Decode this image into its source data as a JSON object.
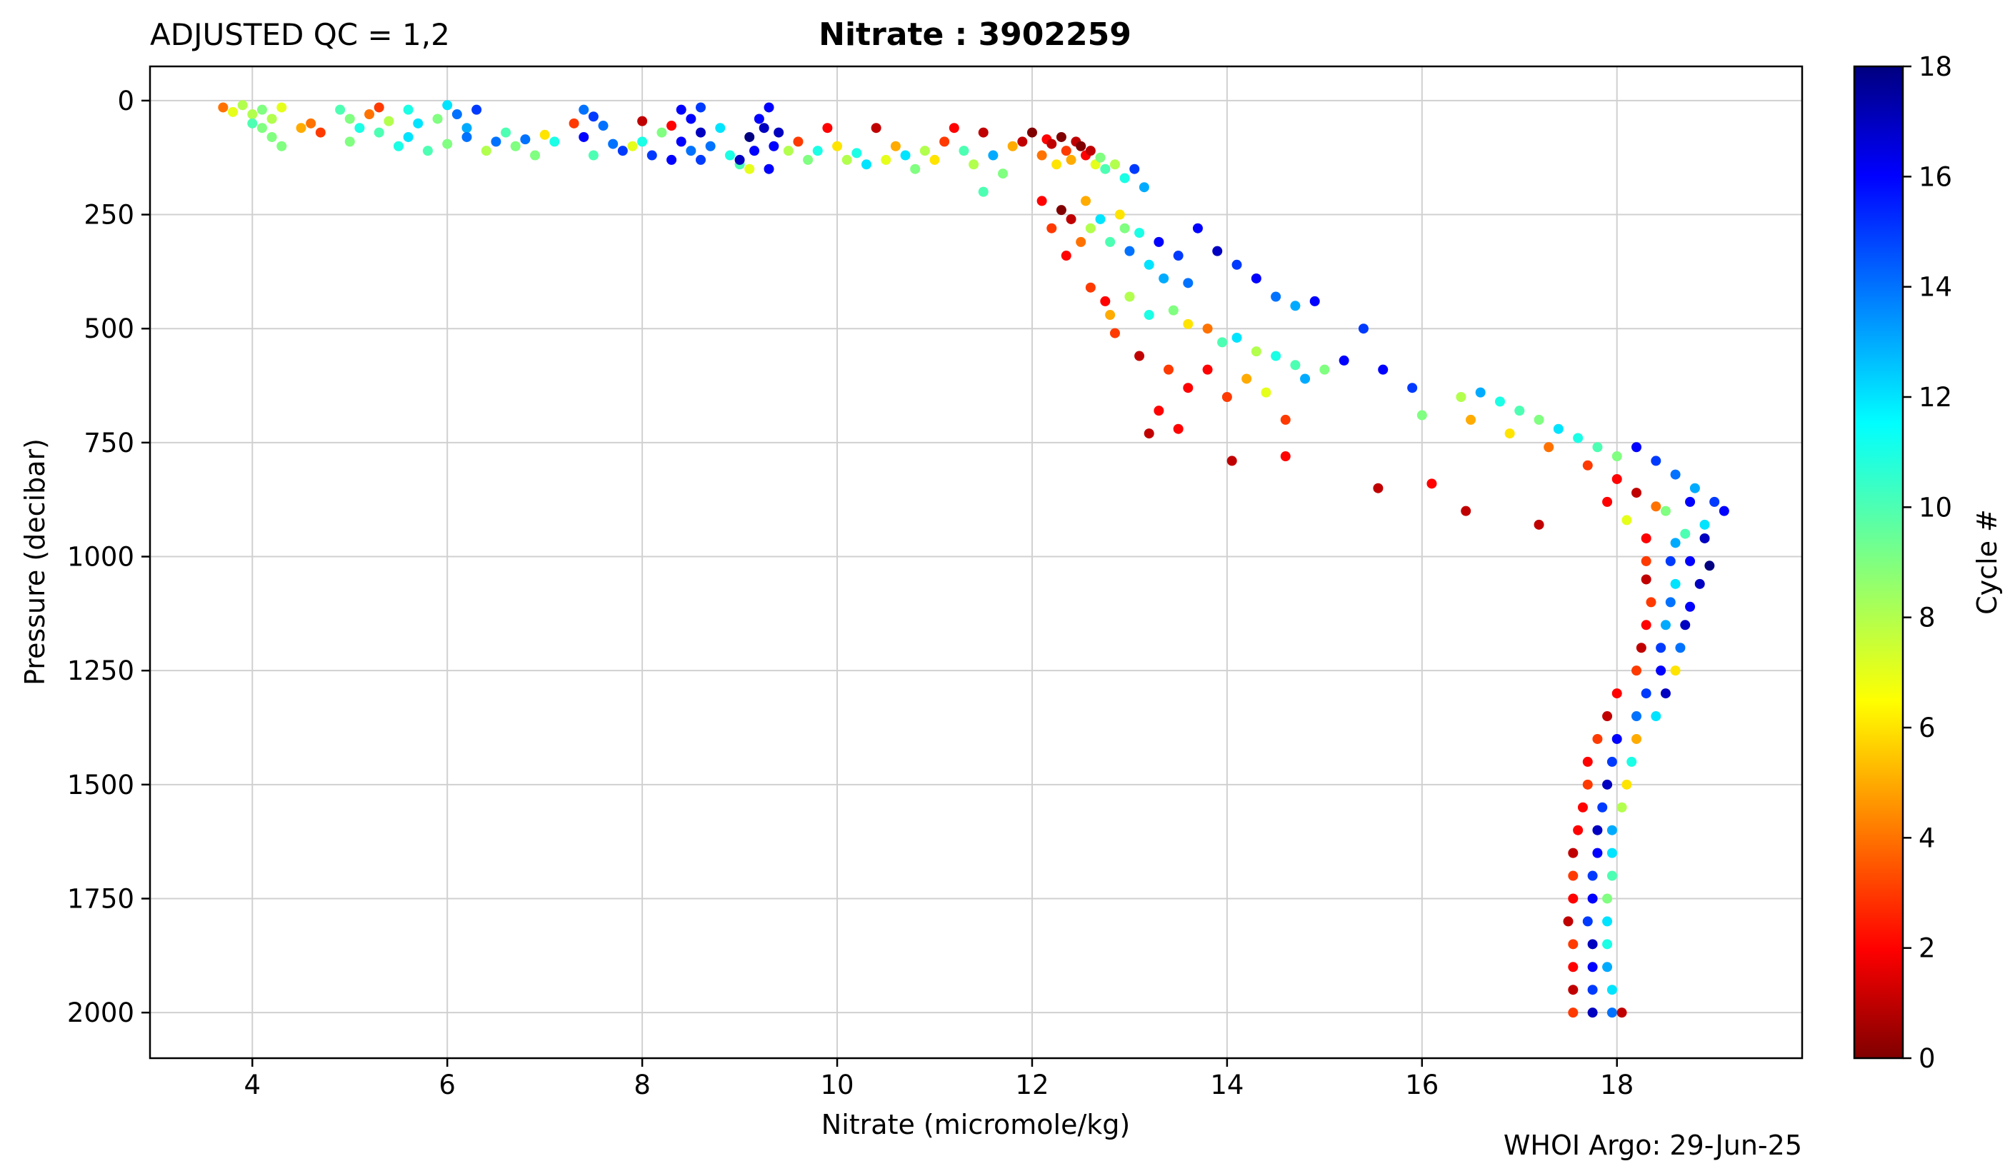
{
  "header": {
    "left_title": "ADJUSTED QC = 1,2",
    "center_title": "Nitrate : 3902259",
    "footer_credit": "WHOI Argo: 29-Jun-25"
  },
  "chart_data": {
    "type": "scatter",
    "xlabel": "Nitrate  (micromole/kg)",
    "ylabel": "Pressure  (decibar)",
    "colorbar_label": "Cycle #",
    "xlim": [
      2.95,
      19.9
    ],
    "ylim": [
      2100,
      -75
    ],
    "y_inverted": true,
    "grid": true,
    "x_ticks": [
      4,
      6,
      8,
      10,
      12,
      14,
      16,
      18
    ],
    "y_ticks": [
      0,
      250,
      500,
      750,
      1000,
      1250,
      1500,
      1750,
      2000
    ],
    "colorbar": {
      "min": 0,
      "max": 18,
      "ticks": [
        0,
        2,
        4,
        6,
        8,
        10,
        12,
        14,
        16,
        18
      ],
      "colormap": "jet"
    },
    "points": [
      [
        3.7,
        15,
        4
      ],
      [
        3.8,
        25,
        7
      ],
      [
        3.9,
        10,
        8
      ],
      [
        4.0,
        30,
        8
      ],
      [
        4.1,
        20,
        9
      ],
      [
        4.2,
        40,
        8
      ],
      [
        4.3,
        15,
        7
      ],
      [
        4.1,
        60,
        9
      ],
      [
        4.0,
        50,
        10
      ],
      [
        4.2,
        80,
        9
      ],
      [
        4.3,
        100,
        9
      ],
      [
        4.5,
        60,
        5
      ],
      [
        4.7,
        70,
        3
      ],
      [
        4.6,
        50,
        4
      ],
      [
        4.9,
        20,
        10
      ],
      [
        5.0,
        40,
        9
      ],
      [
        5.1,
        60,
        11
      ],
      [
        5.0,
        90,
        9
      ],
      [
        5.2,
        30,
        4
      ],
      [
        5.3,
        15,
        3
      ],
      [
        5.4,
        45,
        8
      ],
      [
        5.3,
        70,
        10
      ],
      [
        5.6,
        20,
        11
      ],
      [
        5.7,
        50,
        12
      ],
      [
        5.5,
        100,
        11
      ],
      [
        5.8,
        110,
        10
      ],
      [
        5.9,
        40,
        9
      ],
      [
        5.6,
        80,
        12
      ],
      [
        6.0,
        10,
        12
      ],
      [
        6.1,
        30,
        14
      ],
      [
        6.2,
        60,
        13
      ],
      [
        6.3,
        20,
        15
      ],
      [
        6.2,
        80,
        14
      ],
      [
        6.0,
        95,
        9
      ],
      [
        6.5,
        90,
        14
      ],
      [
        6.6,
        70,
        10
      ],
      [
        6.4,
        110,
        8
      ],
      [
        6.7,
        100,
        9
      ],
      [
        6.8,
        85,
        14
      ],
      [
        6.9,
        120,
        9
      ],
      [
        7.0,
        75,
        6
      ],
      [
        7.1,
        90,
        11
      ],
      [
        7.3,
        50,
        3
      ],
      [
        7.4,
        20,
        14
      ],
      [
        7.5,
        35,
        15
      ],
      [
        7.6,
        55,
        14
      ],
      [
        7.4,
        80,
        16
      ],
      [
        7.7,
        95,
        14
      ],
      [
        7.8,
        110,
        15
      ],
      [
        7.5,
        120,
        10
      ],
      [
        7.9,
        100,
        7
      ],
      [
        8.0,
        90,
        11
      ],
      [
        8.1,
        120,
        15
      ],
      [
        8.2,
        70,
        9
      ],
      [
        8.3,
        55,
        2
      ],
      [
        8.0,
        45,
        1
      ],
      [
        8.4,
        20,
        16
      ],
      [
        8.5,
        40,
        16
      ],
      [
        8.6,
        15,
        15
      ],
      [
        8.4,
        90,
        16
      ],
      [
        8.6,
        70,
        17
      ],
      [
        8.5,
        110,
        14
      ],
      [
        8.3,
        130,
        16
      ],
      [
        8.6,
        130,
        15
      ],
      [
        8.7,
        100,
        14
      ],
      [
        8.8,
        60,
        12
      ],
      [
        8.9,
        120,
        11
      ],
      [
        9.0,
        140,
        10
      ],
      [
        9.1,
        80,
        18
      ],
      [
        9.2,
        40,
        16
      ],
      [
        9.3,
        15,
        16
      ],
      [
        9.25,
        60,
        17
      ],
      [
        9.15,
        110,
        16
      ],
      [
        9.35,
        100,
        16
      ],
      [
        9.0,
        130,
        17
      ],
      [
        9.4,
        70,
        17
      ],
      [
        9.3,
        150,
        16
      ],
      [
        9.1,
        150,
        7
      ],
      [
        9.5,
        110,
        8
      ],
      [
        9.6,
        90,
        3
      ],
      [
        9.7,
        130,
        9
      ],
      [
        9.8,
        110,
        11
      ],
      [
        9.9,
        60,
        2
      ],
      [
        10.0,
        100,
        6
      ],
      [
        10.1,
        130,
        8
      ],
      [
        10.2,
        115,
        11
      ],
      [
        10.3,
        140,
        12
      ],
      [
        10.4,
        60,
        1
      ],
      [
        10.5,
        130,
        7
      ],
      [
        10.6,
        100,
        5
      ],
      [
        10.7,
        120,
        12
      ],
      [
        10.8,
        150,
        9
      ],
      [
        10.9,
        110,
        8
      ],
      [
        11.0,
        130,
        6
      ],
      [
        11.1,
        90,
        3
      ],
      [
        11.2,
        60,
        2
      ],
      [
        11.3,
        110,
        10
      ],
      [
        11.4,
        140,
        8
      ],
      [
        11.5,
        70,
        1
      ],
      [
        11.6,
        120,
        13
      ],
      [
        11.7,
        160,
        9
      ],
      [
        11.5,
        200,
        10
      ],
      [
        11.8,
        100,
        5
      ],
      [
        11.9,
        90,
        1
      ],
      [
        12.0,
        70,
        0
      ],
      [
        12.1,
        120,
        4
      ],
      [
        12.15,
        85,
        2
      ],
      [
        12.2,
        95,
        1
      ],
      [
        12.25,
        140,
        6
      ],
      [
        12.3,
        80,
        0
      ],
      [
        12.35,
        110,
        3
      ],
      [
        12.4,
        130,
        5
      ],
      [
        12.45,
        90,
        1
      ],
      [
        12.5,
        100,
        0
      ],
      [
        12.55,
        120,
        2
      ],
      [
        12.6,
        110,
        1
      ],
      [
        12.65,
        140,
        7
      ],
      [
        12.7,
        125,
        9
      ],
      [
        12.75,
        150,
        10
      ],
      [
        12.85,
        140,
        8
      ],
      [
        12.95,
        170,
        11
      ],
      [
        13.05,
        150,
        15
      ],
      [
        13.15,
        190,
        13
      ],
      [
        12.1,
        220,
        2
      ],
      [
        12.2,
        280,
        3
      ],
      [
        12.3,
        240,
        0
      ],
      [
        12.35,
        340,
        2
      ],
      [
        12.4,
        260,
        1
      ],
      [
        12.5,
        310,
        4
      ],
      [
        12.55,
        220,
        5
      ],
      [
        12.6,
        280,
        8
      ],
      [
        12.7,
        260,
        12
      ],
      [
        12.8,
        310,
        10
      ],
      [
        12.9,
        250,
        6
      ],
      [
        12.95,
        280,
        9
      ],
      [
        13.0,
        330,
        14
      ],
      [
        13.1,
        290,
        11
      ],
      [
        13.2,
        360,
        12
      ],
      [
        13.3,
        310,
        16
      ],
      [
        13.35,
        390,
        13
      ],
      [
        13.5,
        340,
        15
      ],
      [
        13.6,
        400,
        14
      ],
      [
        13.7,
        280,
        16
      ],
      [
        13.9,
        330,
        17
      ],
      [
        14.1,
        360,
        15
      ],
      [
        14.3,
        390,
        16
      ],
      [
        14.5,
        430,
        14
      ],
      [
        14.7,
        450,
        13
      ],
      [
        14.9,
        440,
        16
      ],
      [
        12.6,
        410,
        3
      ],
      [
        12.75,
        440,
        2
      ],
      [
        12.8,
        470,
        5
      ],
      [
        12.85,
        510,
        3
      ],
      [
        13.0,
        430,
        8
      ],
      [
        13.2,
        470,
        11
      ],
      [
        13.45,
        460,
        9
      ],
      [
        13.6,
        490,
        6
      ],
      [
        13.8,
        500,
        4
      ],
      [
        13.95,
        530,
        10
      ],
      [
        14.1,
        520,
        12
      ],
      [
        14.3,
        550,
        8
      ],
      [
        14.5,
        560,
        11
      ],
      [
        14.7,
        580,
        10
      ],
      [
        14.8,
        610,
        13
      ],
      [
        15.0,
        590,
        9
      ],
      [
        15.2,
        570,
        16
      ],
      [
        15.4,
        500,
        15
      ],
      [
        15.6,
        590,
        16
      ],
      [
        15.9,
        630,
        15
      ],
      [
        16.0,
        690,
        9
      ],
      [
        13.1,
        560,
        1
      ],
      [
        13.4,
        590,
        3
      ],
      [
        13.6,
        630,
        2
      ],
      [
        13.8,
        590,
        2
      ],
      [
        14.0,
        650,
        3
      ],
      [
        14.2,
        610,
        5
      ],
      [
        14.4,
        640,
        7
      ],
      [
        14.6,
        700,
        3
      ],
      [
        13.3,
        680,
        2
      ],
      [
        13.5,
        720,
        2
      ],
      [
        13.2,
        730,
        1
      ],
      [
        14.05,
        790,
        1
      ],
      [
        14.6,
        780,
        2
      ],
      [
        15.55,
        850,
        1
      ],
      [
        16.45,
        900,
        1
      ],
      [
        17.2,
        930,
        1
      ],
      [
        16.1,
        840,
        2
      ],
      [
        16.4,
        650,
        8
      ],
      [
        16.6,
        640,
        13
      ],
      [
        16.8,
        660,
        11
      ],
      [
        17.0,
        680,
        10
      ],
      [
        17.2,
        700,
        9
      ],
      [
        17.4,
        720,
        12
      ],
      [
        17.6,
        740,
        11
      ],
      [
        17.8,
        760,
        10
      ],
      [
        18.0,
        780,
        9
      ],
      [
        18.2,
        760,
        16
      ],
      [
        18.4,
        790,
        15
      ],
      [
        18.6,
        820,
        14
      ],
      [
        18.8,
        850,
        13
      ],
      [
        19.0,
        880,
        15
      ],
      [
        19.1,
        900,
        16
      ],
      [
        18.9,
        930,
        12
      ],
      [
        18.7,
        950,
        10
      ],
      [
        16.5,
        700,
        5
      ],
      [
        16.9,
        730,
        6
      ],
      [
        17.3,
        760,
        4
      ],
      [
        17.7,
        800,
        3
      ],
      [
        18.0,
        830,
        2
      ],
      [
        18.2,
        860,
        1
      ],
      [
        18.4,
        890,
        4
      ],
      [
        17.9,
        880,
        2
      ],
      [
        18.1,
        920,
        7
      ],
      [
        18.5,
        900,
        9
      ],
      [
        18.75,
        880,
        16
      ],
      [
        18.3,
        960,
        2
      ],
      [
        18.6,
        970,
        13
      ],
      [
        18.9,
        960,
        17
      ],
      [
        18.3,
        1010,
        3
      ],
      [
        18.55,
        1010,
        15
      ],
      [
        18.75,
        1010,
        16
      ],
      [
        18.95,
        1020,
        18
      ],
      [
        18.3,
        1050,
        1
      ],
      [
        18.6,
        1060,
        12
      ],
      [
        18.85,
        1060,
        17
      ],
      [
        18.35,
        1100,
        3
      ],
      [
        18.55,
        1100,
        14
      ],
      [
        18.75,
        1110,
        16
      ],
      [
        18.3,
        1150,
        2
      ],
      [
        18.5,
        1150,
        13
      ],
      [
        18.7,
        1150,
        17
      ],
      [
        18.25,
        1200,
        1
      ],
      [
        18.45,
        1200,
        15
      ],
      [
        18.65,
        1200,
        14
      ],
      [
        18.2,
        1250,
        3
      ],
      [
        18.45,
        1250,
        16
      ],
      [
        18.6,
        1250,
        6
      ],
      [
        18.0,
        1300,
        2
      ],
      [
        18.3,
        1300,
        15
      ],
      [
        18.5,
        1300,
        17
      ],
      [
        17.9,
        1350,
        1
      ],
      [
        18.2,
        1350,
        14
      ],
      [
        18.4,
        1350,
        12
      ],
      [
        17.8,
        1400,
        3
      ],
      [
        18.0,
        1400,
        16
      ],
      [
        18.2,
        1400,
        5
      ],
      [
        17.7,
        1450,
        2
      ],
      [
        17.95,
        1450,
        15
      ],
      [
        18.15,
        1450,
        11
      ],
      [
        17.7,
        1500,
        3
      ],
      [
        17.9,
        1500,
        17
      ],
      [
        18.1,
        1500,
        6
      ],
      [
        17.65,
        1550,
        2
      ],
      [
        17.85,
        1550,
        15
      ],
      [
        18.05,
        1550,
        8
      ],
      [
        17.6,
        1600,
        2
      ],
      [
        17.8,
        1600,
        17
      ],
      [
        17.95,
        1600,
        13
      ],
      [
        17.55,
        1650,
        1
      ],
      [
        17.8,
        1650,
        16
      ],
      [
        17.95,
        1650,
        12
      ],
      [
        17.55,
        1700,
        3
      ],
      [
        17.75,
        1700,
        15
      ],
      [
        17.95,
        1700,
        10
      ],
      [
        17.55,
        1750,
        2
      ],
      [
        17.75,
        1750,
        16
      ],
      [
        17.9,
        1750,
        9
      ],
      [
        17.5,
        1800,
        1
      ],
      [
        17.7,
        1800,
        15
      ],
      [
        17.9,
        1800,
        12
      ],
      [
        17.55,
        1850,
        3
      ],
      [
        17.75,
        1850,
        17
      ],
      [
        17.9,
        1850,
        11
      ],
      [
        17.55,
        1900,
        2
      ],
      [
        17.75,
        1900,
        16
      ],
      [
        17.9,
        1900,
        13
      ],
      [
        17.55,
        1950,
        1
      ],
      [
        17.75,
        1950,
        15
      ],
      [
        17.95,
        1950,
        12
      ],
      [
        17.55,
        2000,
        3
      ],
      [
        17.75,
        2000,
        17
      ],
      [
        17.95,
        2000,
        14
      ],
      [
        18.05,
        2000,
        1
      ]
    ]
  },
  "colors": {
    "axis": "#000000",
    "grid": "#d0d0d0",
    "background": "#ffffff"
  }
}
